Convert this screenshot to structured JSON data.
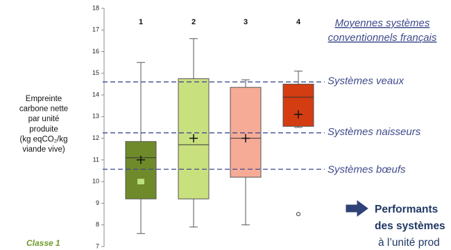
{
  "chart_data": {
    "type": "box",
    "categories": [
      "1",
      "2",
      "3",
      "4"
    ],
    "boxes": [
      {
        "min": 7.6,
        "q1": 9.2,
        "median": 11.1,
        "q3": 11.85,
        "max": 15.5,
        "mean": 11.0,
        "color": "#6f8a2b"
      },
      {
        "min": 7.9,
        "q1": 9.2,
        "median": 11.7,
        "q3": 14.75,
        "max": 16.6,
        "mean": 12.0,
        "color": "#c9e07f"
      },
      {
        "min": 8.0,
        "q1": 10.2,
        "median": 12.0,
        "q3": 14.35,
        "max": 14.7,
        "mean": 12.0,
        "color": "#f6ab97"
      },
      {
        "min": 12.5,
        "q1": 12.55,
        "median": 13.9,
        "q3": 14.5,
        "max": 15.1,
        "mean": 13.1,
        "color": "#d43c12"
      }
    ],
    "markers": [
      10.0,
      null,
      null,
      null
    ],
    "marker_color": "#b9e07a",
    "outliers": [
      [],
      [],
      [],
      [
        8.5
      ]
    ],
    "ylim": [
      7,
      18
    ],
    "yticks": [
      7,
      8,
      9,
      10,
      11,
      12,
      13,
      14,
      15,
      16,
      17,
      18
    ],
    "y_label_lines": [
      "Empreinte",
      "carbone nette",
      "par unité",
      "produite",
      "(kg eqCO₂/kg",
      "viande vive)"
    ],
    "reference_title_lines": [
      "Moyennes systèmes",
      "conventionnels français"
    ],
    "reference_color": "#3f4a8c",
    "reference_lines": [
      {
        "label": "Systèmes veaux",
        "value": 14.6
      },
      {
        "label": "Systèmes naisseurs",
        "value": 12.25
      },
      {
        "label": "Systèmes bœufs",
        "value": 10.57
      }
    ],
    "class_label": "Classe 1",
    "note_lines": [
      "Performants",
      "des systèmes",
      "à l’unité prod"
    ]
  }
}
